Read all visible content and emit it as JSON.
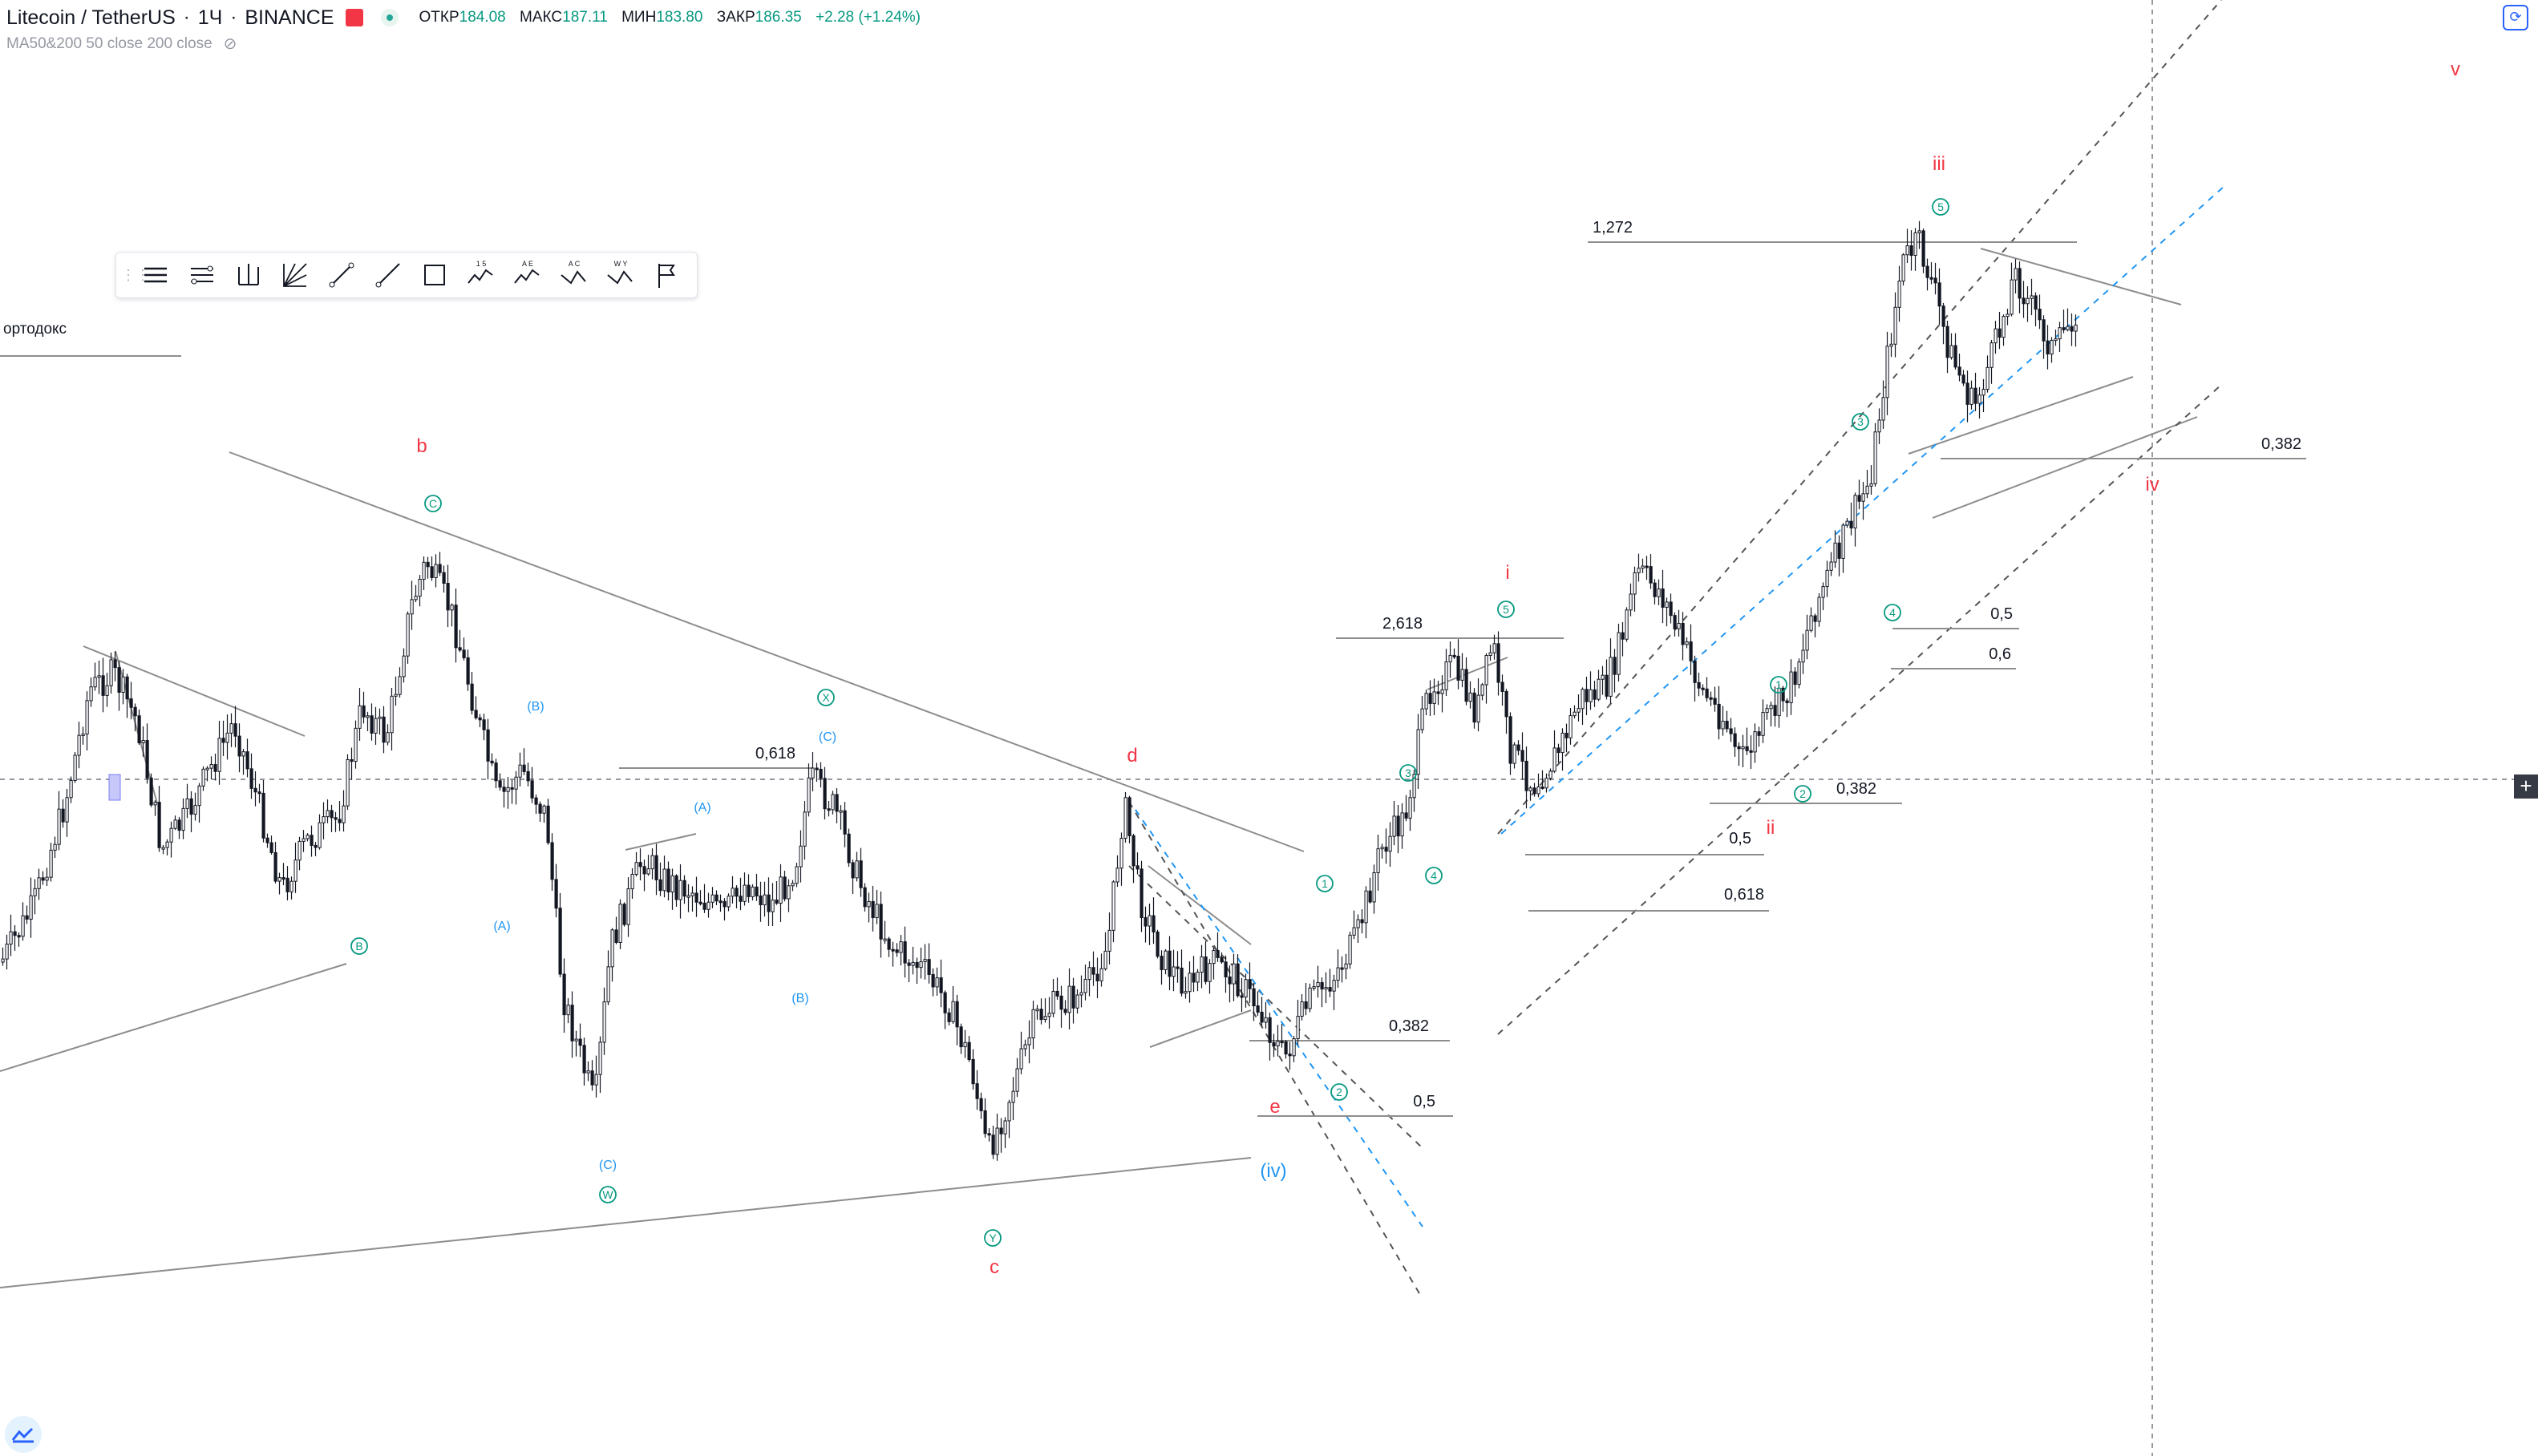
{
  "header": {
    "symbol": "Litecoin / TetherUS",
    "interval": "1Ч",
    "exchange": "BINANCE",
    "ohlc": [
      {
        "label": "ОТКР",
        "value": "184.08"
      },
      {
        "label": "МАКС",
        "value": "187.11"
      },
      {
        "label": "МИН",
        "value": "183.80"
      },
      {
        "label": "ЗАКР",
        "value": "186.35"
      },
      {
        "label": "",
        "value": "+2.28 (+1.24%)"
      }
    ]
  },
  "indicator": {
    "label": "MA50&200 50 close 200 close"
  },
  "drawing_toolbar": {
    "tools": [
      "horizontal-lines-icon",
      "fib-lines-icon",
      "pitchfork-icon",
      "gann-fan-icon",
      "line-icon",
      "ray-icon",
      "rectangle-icon",
      "wave-12345-icon",
      "wave-abcde-icon",
      "wave-abc-icon",
      "wave-wxy-icon",
      "flag-icon"
    ],
    "tool_glyphs": [
      "",
      "",
      "",
      "",
      "",
      "",
      "",
      "1 5",
      "A E",
      "A C",
      "W Y",
      ""
    ]
  },
  "colors": {
    "candle": "#131722",
    "red_label": "#f23645",
    "green_label": "#089981",
    "blue_label": "#2196f3",
    "trend": "#8d8d8d"
  },
  "chart_data": {
    "type": "candlestick",
    "instrument": "Litecoin / TetherUS",
    "timeframe": "1Ч",
    "last_close": 186.35,
    "wave_labels": {
      "red": [
        "b",
        "c",
        "d",
        "e",
        "i",
        "ii",
        "iii",
        "iv",
        "v"
      ],
      "green_circled": [
        "C",
        "X",
        "B",
        "W",
        "Y",
        "1",
        "2",
        "3",
        "4",
        "5",
        "1",
        "2",
        "3",
        "4",
        "5"
      ],
      "blue": [
        "(B)",
        "(C)",
        "(A)",
        "(A)",
        "(B)",
        "(C)",
        "(iv)"
      ]
    },
    "fib_levels": [
      "0,618",
      "0,382",
      "0,5",
      "2,618",
      "0,5",
      "0,618",
      "0,382",
      "0,5",
      "0,6",
      "1,272",
      "0,382"
    ],
    "annotation": "ортодокс"
  }
}
